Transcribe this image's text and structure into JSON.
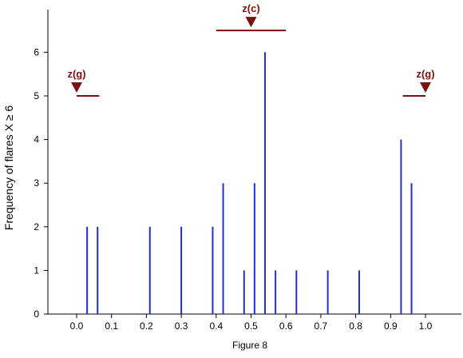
{
  "chart_data": {
    "type": "bar",
    "title": "",
    "xlabel": "Figure 8",
    "ylabel": "Frequency of flares X ≥ 6",
    "xlim": [
      -0.08,
      1.1
    ],
    "ylim": [
      0,
      6.6
    ],
    "x_ticks": [
      "0.0",
      "0.1",
      "0.2",
      "0.3",
      "0.4",
      "0.5",
      "0.6",
      "0.7",
      "0.8",
      "0.9",
      "1.0"
    ],
    "y_ticks": [
      "0",
      "1",
      "2",
      "3",
      "4",
      "5",
      "6"
    ],
    "grid": false,
    "bar_color": "#1f2fd6",
    "annotation_color": "#7a1010",
    "points": [
      {
        "x": 0.03,
        "y": 2
      },
      {
        "x": 0.06,
        "y": 2
      },
      {
        "x": 0.21,
        "y": 2
      },
      {
        "x": 0.3,
        "y": 2
      },
      {
        "x": 0.39,
        "y": 2
      },
      {
        "x": 0.42,
        "y": 3
      },
      {
        "x": 0.48,
        "y": 1
      },
      {
        "x": 0.51,
        "y": 3
      },
      {
        "x": 0.54,
        "y": 6
      },
      {
        "x": 0.57,
        "y": 1
      },
      {
        "x": 0.63,
        "y": 1
      },
      {
        "x": 0.72,
        "y": 1
      },
      {
        "x": 0.81,
        "y": 1
      },
      {
        "x": 0.93,
        "y": 4
      },
      {
        "x": 0.96,
        "y": 3
      }
    ],
    "annotations": [
      {
        "label": "z(g)",
        "marker_x": 0.0,
        "range": [
          0.0,
          0.065
        ],
        "y": 5.0
      },
      {
        "label": "z(c)",
        "marker_x": 0.5,
        "range": [
          0.4,
          0.6
        ],
        "y": 6.5
      },
      {
        "label": "z(g)",
        "marker_x": 1.0,
        "range": [
          0.935,
          1.0
        ],
        "y": 5.0
      }
    ]
  }
}
